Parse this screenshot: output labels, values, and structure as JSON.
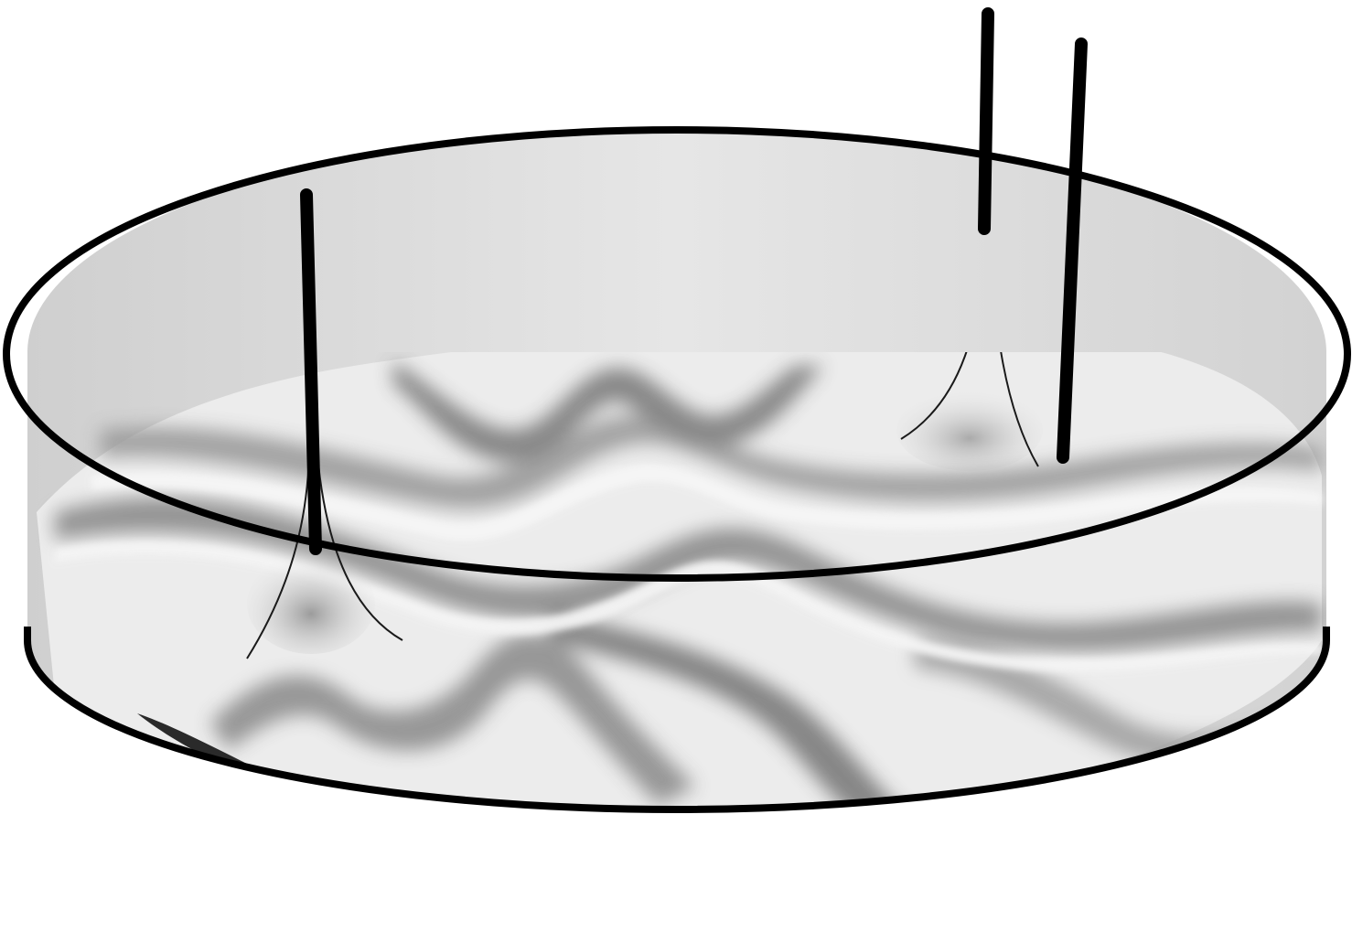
{
  "figure": {
    "subject": "",
    "caption": ""
  },
  "colors": {
    "outline": "#000000",
    "cylinder_fill": "#d9d9d9",
    "surface_light": "#ececec",
    "surface_mid": "#b5b5b5",
    "surface_dark": "#6f6f6f",
    "shadow": "#2a2a2a",
    "background": "#ffffff"
  },
  "components": {
    "rods": [
      "left",
      "right-front",
      "right-back"
    ],
    "rim_ellipses": [
      "top",
      "bottom"
    ]
  }
}
